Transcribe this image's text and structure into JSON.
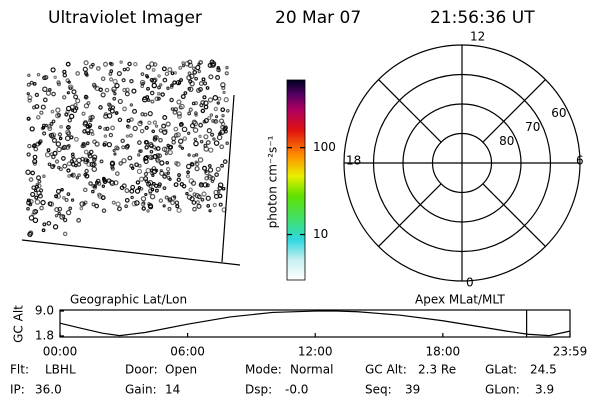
{
  "header": {
    "title": "Ultraviolet Imager",
    "date": "20 Mar 07",
    "time": "21:56:36 UT"
  },
  "colorbar": {
    "label": "photon cm⁻²s⁻¹",
    "log": true,
    "lim": [
      3,
      600
    ],
    "ticks": [
      10,
      100
    ]
  },
  "polar": {
    "mlt_labels": {
      "top": "12",
      "right": "6",
      "bottom": "0",
      "left": "18"
    },
    "lat_range": [
      50,
      90
    ],
    "lat_ticks": [
      60,
      70,
      80
    ]
  },
  "chart_data": {
    "type": "line",
    "ylabel": "GC Alt",
    "left_title": "Geographic Lat/Lon",
    "right_title": "Apex MLat/MLT",
    "x": [
      0,
      1,
      2,
      2.8,
      4,
      6,
      8,
      10,
      12,
      13,
      14,
      16,
      18,
      20,
      21,
      22,
      23,
      23.98
    ],
    "series": [
      {
        "name": "GC Alt",
        "color": "#000000",
        "values": [
          5.5,
          4.0,
          2.6,
          1.9,
          2.8,
          5.2,
          7.3,
          8.6,
          9.0,
          9.0,
          8.8,
          7.8,
          6.2,
          4.2,
          3.2,
          2.3,
          1.9,
          3.2
        ]
      }
    ],
    "marker_x": 21.94,
    "marker_color": "#dd0000",
    "xlim": [
      0,
      23.98
    ],
    "ylim": [
      1.5,
      9.3
    ],
    "xticks": [
      {
        "value": 0,
        "label": "00:00"
      },
      {
        "value": 6,
        "label": "06:00"
      },
      {
        "value": 12,
        "label": "12:00"
      },
      {
        "value": 18,
        "label": "18:00"
      },
      {
        "value": 23.98,
        "label": "23:59"
      }
    ],
    "yticks": [
      {
        "value": 9.0,
        "label": "9.0"
      },
      {
        "value": 1.8,
        "label": "1.8"
      }
    ]
  },
  "info": [
    [
      {
        "label": "Flt:",
        "value": "LBHL"
      },
      {
        "label": "Door:",
        "value": "Open"
      },
      {
        "label": "Mode:",
        "value": "Normal"
      },
      {
        "label": "GC Alt:",
        "value": "2.3 Re"
      },
      {
        "label": "GLat:",
        "value": "24.5"
      }
    ],
    [
      {
        "label": "IP:",
        "value": "36.0"
      },
      {
        "label": "Gain:",
        "value": "14"
      },
      {
        "label": "Dsp:",
        "value": "-0.0"
      },
      {
        "label": "Seq:",
        "value": "39"
      },
      {
        "label": "GLon:",
        "value": "3.9"
      }
    ]
  ]
}
